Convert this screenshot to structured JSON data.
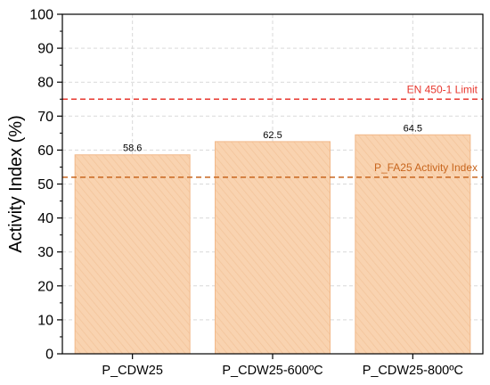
{
  "chart_data": {
    "type": "bar",
    "categories": [
      "P_CDW25",
      "P_CDW25-600ºC",
      "P_CDW25-800ºC"
    ],
    "values": [
      58.6,
      62.5,
      64.5
    ],
    "data_labels": [
      "58.6",
      "62.5",
      "64.5"
    ],
    "title": "",
    "xlabel": "",
    "ylabel": "Activity Index (%)",
    "ylim": [
      0,
      100
    ],
    "yticks": [
      0,
      10,
      20,
      30,
      40,
      50,
      60,
      70,
      80,
      90,
      100
    ],
    "grid": true,
    "bar_color": "#f9d3b0",
    "bar_edge_color": "#f2b98a",
    "reference_lines": [
      {
        "label": "EN 450-1 Limit",
        "value": 75,
        "color": "#e8382f"
      },
      {
        "label": "P_FA25 Activity Index",
        "value": 52,
        "color": "#c8661e"
      }
    ]
  }
}
